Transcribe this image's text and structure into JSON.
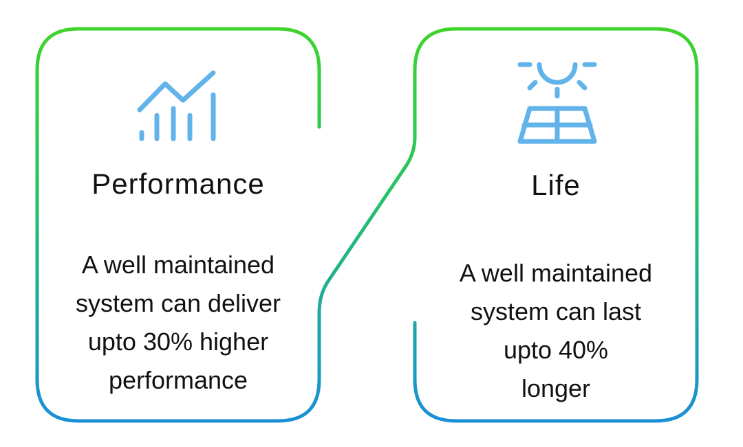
{
  "cards": [
    {
      "icon": "growth-chart-icon",
      "title": "Performance",
      "lines": [
        "A well maintained",
        "system can deliver",
        "upto 30% higher",
        "performance"
      ]
    },
    {
      "icon": "solar-panel-sun-icon",
      "title": "Life",
      "lines": [
        "A well maintained",
        "system can last",
        "upto 40%",
        "longer"
      ]
    }
  ],
  "colors": {
    "gradient_top": "#3ed42a",
    "gradient_bottom": "#1a8fd8",
    "icon": "#62b3ea",
    "text": "#111111"
  }
}
